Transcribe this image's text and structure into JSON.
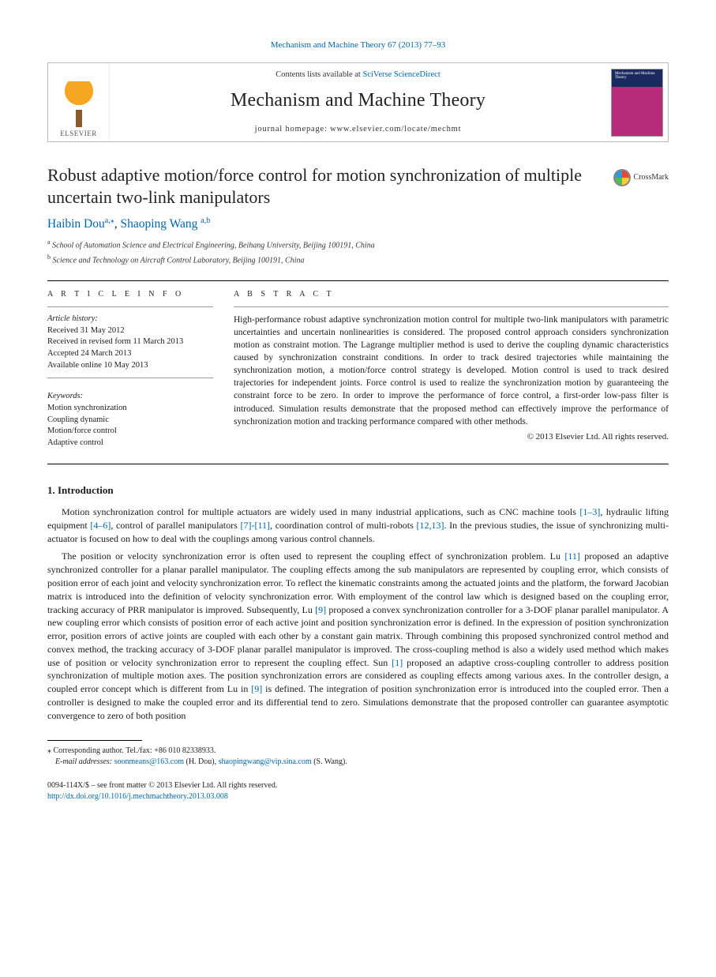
{
  "top_citation": "Mechanism and Machine Theory 67 (2013) 77–93",
  "masthead": {
    "publisher_label": "ELSEVIER",
    "contents_prefix": "Contents lists available at ",
    "contents_source": "SciVerse ScienceDirect",
    "journal_name": "Mechanism and Machine Theory",
    "homepage_prefix": "journal homepage: ",
    "homepage_url": "www.elsevier.com/locate/mechmt",
    "cover_text": "Mechanism and Machine Theory"
  },
  "crossmark_label": "CrossMark",
  "title": "Robust adaptive motion/force control for motion synchronization of multiple uncertain two-link manipulators",
  "authors": {
    "a1_name": "Haibin Dou",
    "a1_aff": "a,",
    "a1_star": "⁎",
    "sep": ", ",
    "a2_name": "Shaoping Wang",
    "a2_aff": "a,b"
  },
  "affiliations": {
    "a": "School of Automation Science and Electrical Engineering, Beihang University, Beijing 100191, China",
    "b": "Science and Technology on Aircraft Control Laboratory, Beijing 100191, China"
  },
  "info": {
    "head": "A R T I C L E   I N F O",
    "history_label": "Article history:",
    "received": "Received 31 May 2012",
    "revised": "Received in revised form 11 March 2013",
    "accepted": "Accepted 24 March 2013",
    "online": "Available online 10 May 2013",
    "keywords_label": "Keywords:",
    "kw1": "Motion synchronization",
    "kw2": "Coupling dynamic",
    "kw3": "Motion/force control",
    "kw4": "Adaptive control"
  },
  "abstract": {
    "head": "A B S T R A C T",
    "text": "High-performance robust adaptive synchronization motion control for multiple two-link manipulators with parametric uncertainties and uncertain nonlinearities is considered. The proposed control approach considers synchronization motion as constraint motion. The Lagrange multiplier method is used to derive the coupling dynamic characteristics caused by synchronization constraint conditions. In order to track desired trajectories while maintaining the synchronization motion, a motion/force control strategy is developed. Motion control is used to track desired trajectories for independent joints. Force control is used to realize the synchronization motion by guaranteeing the constraint force to be zero. In order to improve the performance of force control, a first-order low-pass filter is introduced. Simulation results demonstrate that the proposed method can effectively improve the performance of synchronization motion and tracking performance compared with other methods.",
    "copyright": "© 2013 Elsevier Ltd. All rights reserved."
  },
  "section1_head": "1. Introduction",
  "p1_a": "Motion synchronization control for multiple actuators are widely used in many industrial applications, such as CNC machine tools ",
  "p1_r1": "[1–3]",
  "p1_b": ", hydraulic lifting equipment ",
  "p1_r2": "[4–6]",
  "p1_c": ", control of parallel manipulators ",
  "p1_r3": "[7]-[11]",
  "p1_d": ", coordination control of multi-robots ",
  "p1_r4": "[12,13]",
  "p1_e": ". In the previous studies, the issue of synchronizing multi-actuator is focused on how to deal with the couplings among various control channels.",
  "p2_a": "The position or velocity synchronization error is often used to represent the coupling effect of synchronization problem. Lu ",
  "p2_r1": "[11]",
  "p2_b": " proposed an adaptive synchronized controller for a planar parallel manipulator. The coupling effects among the sub manipulators are represented by coupling error, which consists of position error of each joint and velocity synchronization error. To reflect the kinematic constraints among the actuated joints and the platform, the forward Jacobian matrix is introduced into the definition of velocity synchronization error. With employment of the control law which is designed based on the coupling error, tracking accuracy of PRR manipulator is improved. Subsequently, Lu ",
  "p2_r2": "[9]",
  "p2_c": " proposed a convex synchronization controller for a 3-DOF planar parallel manipulator. A new coupling error which consists of position error of each active joint and position synchronization error is defined. In the expression of position synchronization error, position errors of active joints are coupled with each other by a constant gain matrix. Through combining this proposed synchronized control method and convex method, the tracking accuracy of 3-DOF planar parallel manipulator is improved. The cross-coupling method is also a widely used method which makes use of position or velocity synchronization error to represent the coupling effect. Sun ",
  "p2_r3": "[1]",
  "p2_d": " proposed an adaptive cross-coupling controller to address position synchronization of multiple motion axes. The position synchronization errors are considered as coupling effects among various axes. In the controller design, a coupled error concept which is different from Lu in ",
  "p2_r4": "[9]",
  "p2_e": " is defined. The integration of position synchronization error is introduced into the coupled error. Then a controller is designed to make the coupled error and its differential tend to zero. Simulations demonstrate that the proposed controller can guarantee asymptotic convergence to zero of both position",
  "footnote": {
    "corr_label": "⁎  Corresponding author. Tel./fax: ",
    "corr_val": "+86 010 82338933.",
    "email_label": "E-mail addresses: ",
    "email1": "soonmeans@163.com",
    "email1_who": " (H. Dou), ",
    "email2": "shaopingwang@vip.sina.com",
    "email2_who": " (S. Wang)."
  },
  "bottom": {
    "issn_line": "0094-114X/$ – see front matter © 2013 Elsevier Ltd. All rights reserved.",
    "doi": "http://dx.doi.org/10.1016/j.mechmachtheory.2013.03.008"
  },
  "colors": {
    "link": "#0066aa",
    "text": "#1a1a1a",
    "border": "#bbbbbb"
  }
}
